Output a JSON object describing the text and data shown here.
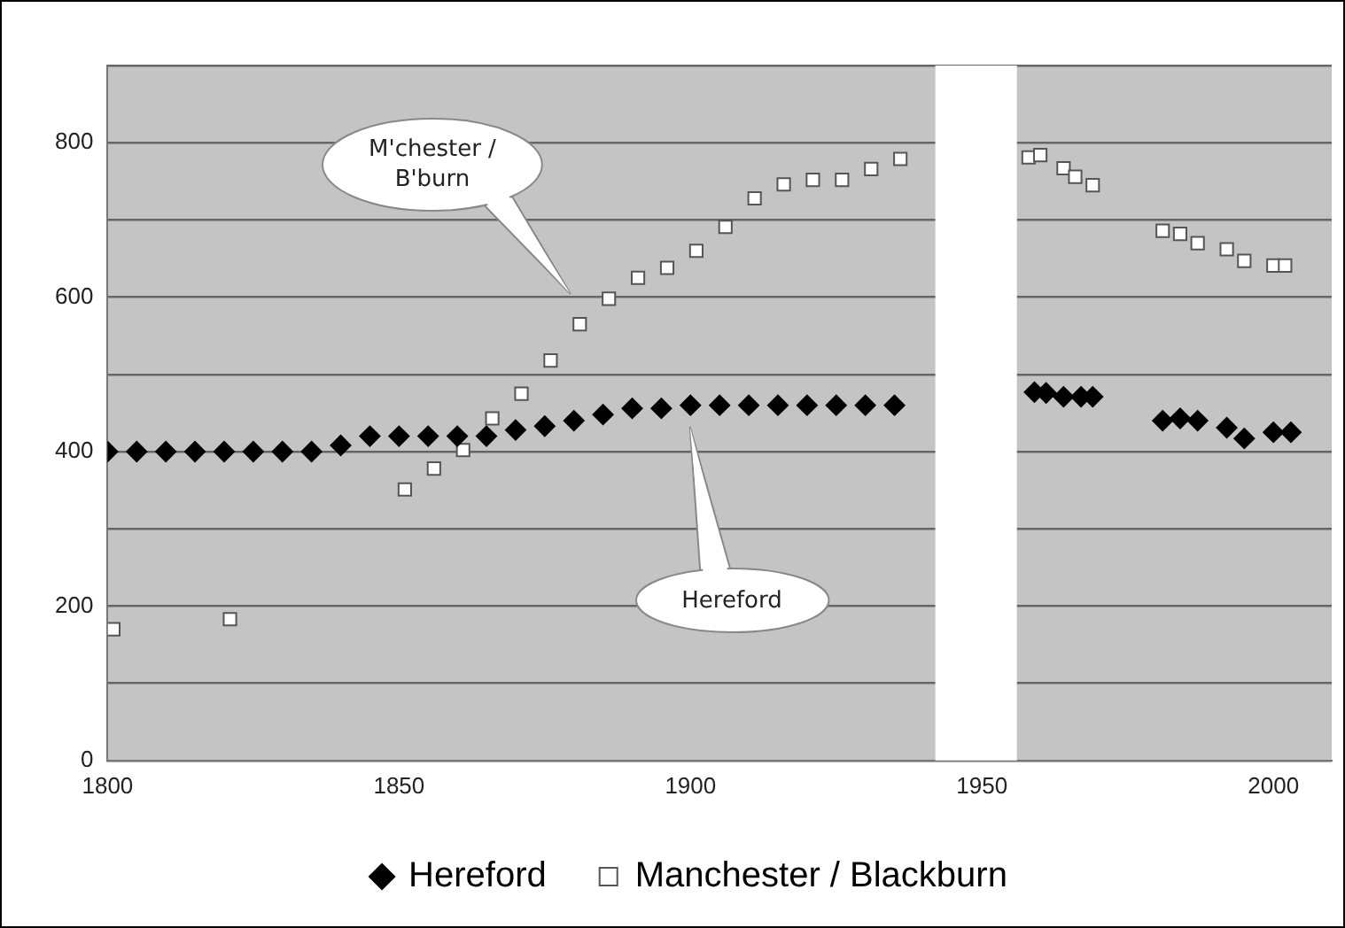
{
  "chart_data": {
    "type": "scatter",
    "xlim": [
      1800,
      2010
    ],
    "xticks": [
      1800,
      1850,
      1900,
      1950,
      2000
    ],
    "ylim": [
      0,
      900
    ],
    "yticks": [
      0,
      {
        "value": 100,
        "label": null
      },
      200,
      {
        "value": 300,
        "label": null
      },
      400,
      {
        "value": 500,
        "label": null
      },
      600,
      {
        "value": 700,
        "label": null
      },
      800,
      {
        "value": 900,
        "label": null
      }
    ],
    "grid": "y",
    "legend": "bottom",
    "bands": [
      {
        "axis": "x",
        "from": 1942,
        "to": 1956,
        "color": "#ffffff"
      }
    ],
    "annotations": [
      "M'chester / B'burn",
      "Hereford"
    ],
    "series": [
      {
        "name": "Hereford",
        "color": "#000000",
        "marker": "diamond",
        "x": [
          1800,
          1805,
          1810,
          1815,
          1820,
          1825,
          1830,
          1835,
          1840,
          1845,
          1850,
          1855,
          1860,
          1865,
          1870,
          1875,
          1880,
          1885,
          1890,
          1895,
          1900,
          1905,
          1910,
          1915,
          1920,
          1925,
          1930,
          1935,
          1959,
          1961,
          1964,
          1967,
          1969,
          1981,
          1984,
          1987,
          1992,
          1995,
          2000,
          2003
        ],
        "values": [
          400,
          400,
          400,
          400,
          400,
          400,
          400,
          400,
          408,
          420,
          420,
          420,
          420,
          420,
          428,
          433,
          440,
          448,
          456,
          456,
          460,
          460,
          460,
          460,
          460,
          460,
          460,
          460,
          477,
          476,
          471,
          471,
          471,
          440,
          443,
          440,
          431,
          417,
          425,
          425
        ]
      },
      {
        "name": "Manchester / Blackburn",
        "color": "#ffffff",
        "marker": "square",
        "x": [
          1801,
          1821,
          1851,
          1856,
          1861,
          1866,
          1871,
          1876,
          1881,
          1886,
          1891,
          1896,
          1901,
          1906,
          1911,
          1916,
          1921,
          1926,
          1931,
          1936,
          1958,
          1960,
          1964,
          1966,
          1969,
          1981,
          1984,
          1987,
          1992,
          1995,
          2000,
          2002
        ],
        "values": [
          170,
          183,
          351,
          378,
          402,
          443,
          475,
          518,
          565,
          598,
          625,
          638,
          660,
          691,
          728,
          746,
          752,
          752,
          766,
          779,
          781,
          784,
          767,
          756,
          745,
          686,
          682,
          670,
          662,
          647,
          641,
          641
        ]
      }
    ]
  }
}
